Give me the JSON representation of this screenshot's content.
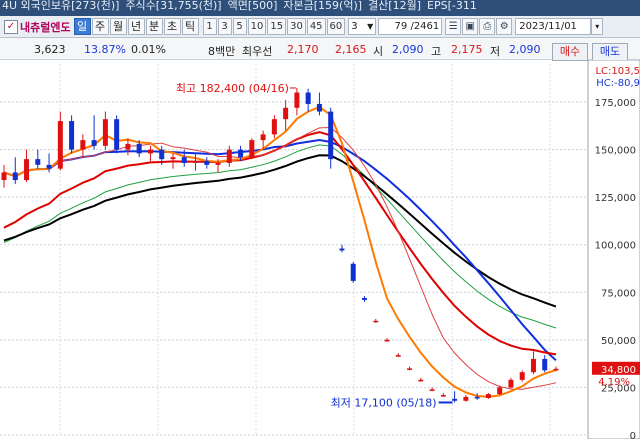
{
  "info_bar": {
    "items": [
      "4U 외국인보유[273(천)]",
      "주식수[31,755(천)]",
      "액면[500]",
      "자본금[159(억)]",
      "결산[12월]",
      "EPS[-311"
    ]
  },
  "toolbar": {
    "checkbox_mark": "✓",
    "stock_name": "내츄럴엔도",
    "period_buttons": [
      "일",
      "주",
      "월",
      "년",
      "분",
      "초",
      "틱"
    ],
    "active_period": "일",
    "minute_buttons": [
      "1",
      "3",
      "5",
      "10",
      "15",
      "30",
      "45",
      "60"
    ],
    "interval_value": "3",
    "count_value": "79 /2461",
    "date_value": "2023/11/01"
  },
  "quote_bar": {
    "price": "3,623",
    "change_rate": "13.87%",
    "rate2": "0.01%",
    "volume_label": "8백만",
    "best_label": "최우선",
    "ask": "2,170",
    "bid": "2,165",
    "open_label": "시",
    "open": "2,090",
    "high_label": "고",
    "high": "2,175",
    "low_label": "저",
    "low": "2,090",
    "buy_button": "매수",
    "sell_button": "매도"
  },
  "chart_data": {
    "type": "candlestick",
    "y_ticks": [
      "175,000",
      "150,000",
      "125,000",
      "100,000",
      "75,000",
      "50,000",
      "25,000",
      "0"
    ],
    "y_tick_values": [
      175000,
      150000,
      125000,
      100000,
      75000,
      50000,
      25000,
      0
    ],
    "ylim": [
      0,
      195000
    ],
    "annotations": {
      "high_note": "최고 182,400 (04/16)",
      "low_note": "최저 17,100 (05/18)",
      "lc_label": "LC:103,5",
      "hc_label": "HC:-80,9",
      "current_price": "34,800",
      "current_rate": "4.19%"
    },
    "grid": true,
    "colors": {
      "up": "#e01010",
      "down": "#1030d0",
      "ma_orange": "#ff7a00",
      "ma_red_thin": "#e04040",
      "ma_red": "#e00000",
      "ma_blue": "#1030e0",
      "ma_black": "#000000",
      "ma_green": "#20a040"
    },
    "candles": [
      {
        "o": 134000,
        "h": 142000,
        "l": 130000,
        "c": 138000
      },
      {
        "o": 138000,
        "h": 146000,
        "l": 132000,
        "c": 134000
      },
      {
        "o": 134000,
        "h": 150000,
        "l": 133000,
        "c": 145000
      },
      {
        "o": 145000,
        "h": 150000,
        "l": 140000,
        "c": 142000
      },
      {
        "o": 142000,
        "h": 148000,
        "l": 138000,
        "c": 140000
      },
      {
        "o": 140000,
        "h": 170000,
        "l": 139000,
        "c": 165000
      },
      {
        "o": 165000,
        "h": 168000,
        "l": 148000,
        "c": 150000
      },
      {
        "o": 150000,
        "h": 158000,
        "l": 146000,
        "c": 155000
      },
      {
        "o": 155000,
        "h": 168000,
        "l": 150000,
        "c": 152000
      },
      {
        "o": 152000,
        "h": 170000,
        "l": 150000,
        "c": 166000
      },
      {
        "o": 166000,
        "h": 168000,
        "l": 148000,
        "c": 150000
      },
      {
        "o": 150000,
        "h": 156000,
        "l": 147000,
        "c": 153000
      },
      {
        "o": 153000,
        "h": 155000,
        "l": 146000,
        "c": 148000
      },
      {
        "o": 148000,
        "h": 152000,
        "l": 144000,
        "c": 150000
      },
      {
        "o": 150000,
        "h": 152000,
        "l": 142000,
        "c": 145000
      },
      {
        "o": 145000,
        "h": 148000,
        "l": 140000,
        "c": 146000
      },
      {
        "o": 146000,
        "h": 150000,
        "l": 141000,
        "c": 143000
      },
      {
        "o": 143000,
        "h": 148000,
        "l": 139000,
        "c": 144000
      },
      {
        "o": 144000,
        "h": 146000,
        "l": 140000,
        "c": 142000
      },
      {
        "o": 142000,
        "h": 145000,
        "l": 138000,
        "c": 143000
      },
      {
        "o": 143000,
        "h": 152000,
        "l": 141000,
        "c": 150000
      },
      {
        "o": 150000,
        "h": 152000,
        "l": 144000,
        "c": 146000
      },
      {
        "o": 146000,
        "h": 156000,
        "l": 145000,
        "c": 155000
      },
      {
        "o": 155000,
        "h": 160000,
        "l": 150000,
        "c": 158000
      },
      {
        "o": 158000,
        "h": 168000,
        "l": 156000,
        "c": 166000
      },
      {
        "o": 166000,
        "h": 176000,
        "l": 160000,
        "c": 172000
      },
      {
        "o": 172000,
        "h": 182400,
        "l": 168000,
        "c": 180000
      },
      {
        "o": 180000,
        "h": 182000,
        "l": 170000,
        "c": 174000
      },
      {
        "o": 174000,
        "h": 180000,
        "l": 168000,
        "c": 170000
      },
      {
        "o": 170000,
        "h": 172000,
        "l": 140000,
        "c": 145000
      },
      {
        "o": 98000,
        "h": 100000,
        "l": 96000,
        "c": 97000
      },
      {
        "o": 90000,
        "h": 91000,
        "l": 80000,
        "c": 81000
      },
      {
        "o": 72000,
        "h": 73000,
        "l": 70000,
        "c": 71000
      },
      {
        "o": 60000,
        "h": 61000,
        "l": 59000,
        "c": 60000
      },
      {
        "o": 50000,
        "h": 51000,
        "l": 49000,
        "c": 50000
      },
      {
        "o": 42000,
        "h": 43000,
        "l": 41000,
        "c": 42000
      },
      {
        "o": 35000,
        "h": 36000,
        "l": 34000,
        "c": 35000
      },
      {
        "o": 29000,
        "h": 30000,
        "l": 28000,
        "c": 29000
      },
      {
        "o": 24000,
        "h": 25000,
        "l": 23000,
        "c": 24000
      },
      {
        "o": 21000,
        "h": 22000,
        "l": 20000,
        "c": 21000
      },
      {
        "o": 19000,
        "h": 23000,
        "l": 17100,
        "c": 18000
      },
      {
        "o": 18000,
        "h": 21000,
        "l": 17500,
        "c": 20000
      },
      {
        "o": 20000,
        "h": 22000,
        "l": 18500,
        "c": 19500
      },
      {
        "o": 19500,
        "h": 22000,
        "l": 19000,
        "c": 21500
      },
      {
        "o": 21500,
        "h": 26000,
        "l": 21000,
        "c": 25000
      },
      {
        "o": 25000,
        "h": 30000,
        "l": 24500,
        "c": 29000
      },
      {
        "o": 29000,
        "h": 34000,
        "l": 28000,
        "c": 33000
      },
      {
        "o": 33000,
        "h": 44000,
        "l": 32000,
        "c": 40000
      },
      {
        "o": 40000,
        "h": 42000,
        "l": 33000,
        "c": 34000
      },
      {
        "o": 34000,
        "h": 36000,
        "l": 33500,
        "c": 34800
      }
    ]
  }
}
